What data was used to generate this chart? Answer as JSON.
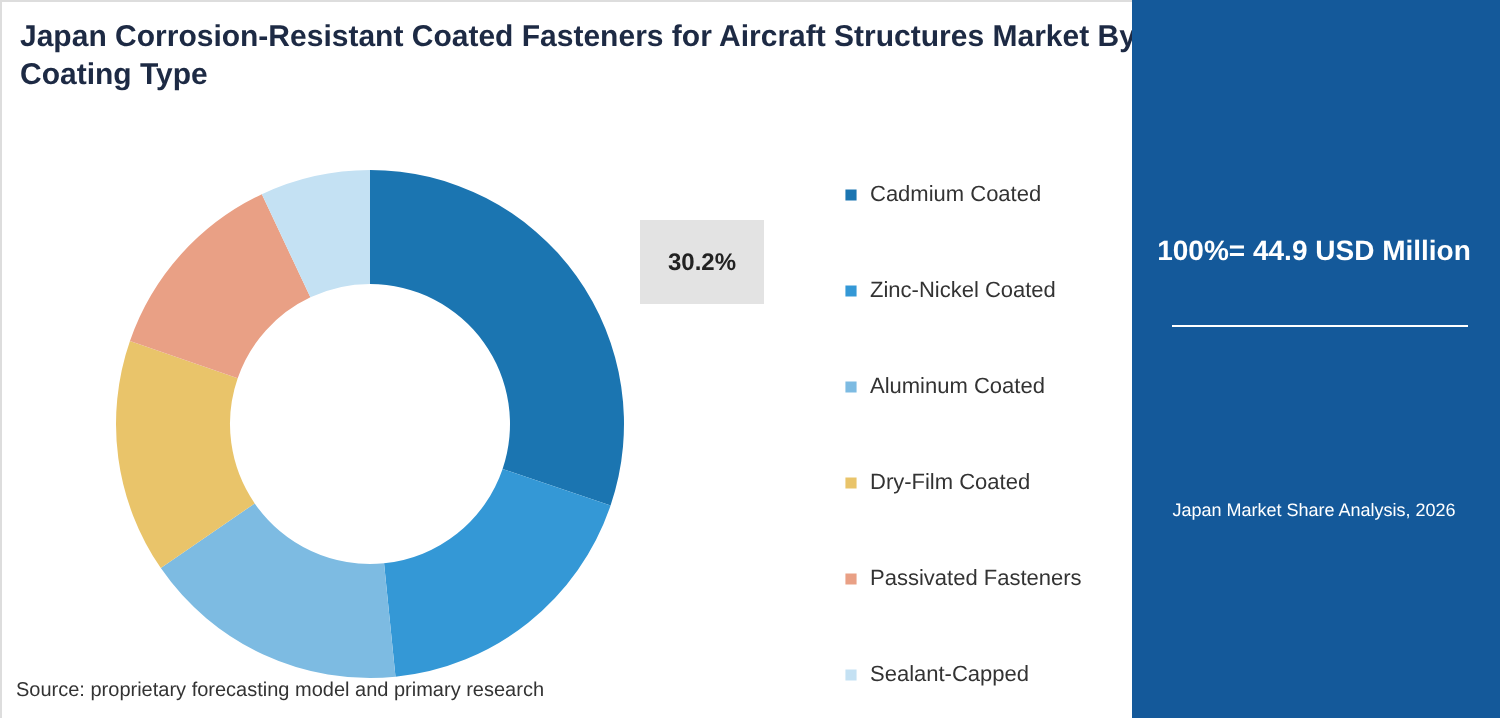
{
  "chart_data": {
    "type": "donut",
    "title": "Japan Corrosion-Resistant Coated Fasteners for Aircraft Structures Market By Coating Type",
    "categories": [
      "Cadmium Coated",
      "Zinc-Nickel Coated",
      "Aluminum Coated",
      "Dry-Film Coated",
      "Passivated Fasteners",
      "Sealant-Capped"
    ],
    "values": [
      30.2,
      18.2,
      17.0,
      14.9,
      12.7,
      7.0
    ],
    "colors": [
      "#1b75b1",
      "#3498d6",
      "#7dbbe2",
      "#e9c46a",
      "#e9a085",
      "#c4e1f3"
    ],
    "value_labels": [
      "30.2%",
      null,
      null,
      null,
      null,
      null
    ],
    "legend": "right",
    "annotations": [
      "100%= 44.9 USD Million",
      "Japan Market Share Analysis, 2026",
      "Source: proprietary forecasting model and primary research"
    ]
  }
}
